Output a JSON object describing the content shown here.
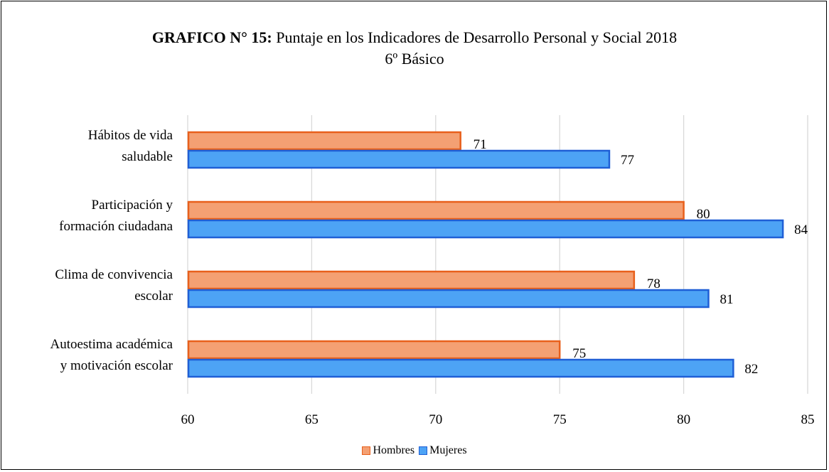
{
  "title": {
    "bold": "GRAFICO N° 15:",
    "rest": " Puntaje en los Indicadores de Desarrollo Personal y Social 2018",
    "line2": "6º Básico"
  },
  "chart_data": {
    "type": "bar",
    "orientation": "horizontal",
    "categories": [
      [
        "Hábitos de vida",
        "saludable"
      ],
      [
        "Participación y",
        "formación ciudadana"
      ],
      [
        "Clima de convivencia",
        "escolar"
      ],
      [
        "Autoestima académica",
        "y motivación escolar"
      ]
    ],
    "series": [
      {
        "name": "Hombres",
        "values": [
          71,
          80,
          78,
          75
        ],
        "fill": "#f4a073",
        "stroke": "#e8601c"
      },
      {
        "name": "Mujeres",
        "values": [
          77,
          84,
          81,
          82
        ],
        "fill": "#4da3f5",
        "stroke": "#1f5fd6"
      }
    ],
    "xlim": [
      60,
      85
    ],
    "xticks": [
      60,
      65,
      70,
      75,
      80,
      85
    ],
    "grid": true,
    "data_labels": true,
    "legend_position": "bottom"
  }
}
